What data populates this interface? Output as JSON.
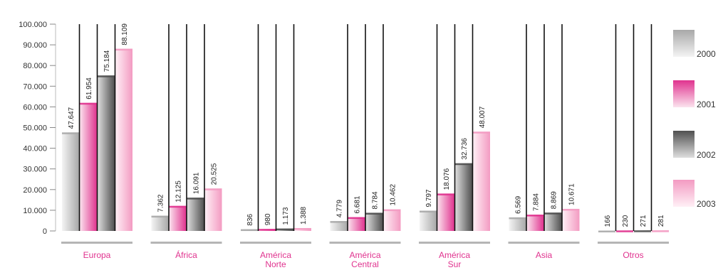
{
  "chart_data": {
    "type": "bar",
    "title": "",
    "xlabel": "",
    "ylabel": "",
    "ylim": [
      0,
      100000
    ],
    "yticks": [
      "0",
      "10.000",
      "20.000",
      "30.000",
      "40.000",
      "50.000",
      "60.000",
      "70.000",
      "80.000",
      "90.000",
      "100.000"
    ],
    "categories": [
      [
        "Europa"
      ],
      [
        "África"
      ],
      [
        "América",
        "Norte"
      ],
      [
        "América",
        "Central"
      ],
      [
        "América",
        "Sur"
      ],
      [
        "Asia"
      ],
      [
        "Otros"
      ]
    ],
    "series": [
      {
        "name": "2000",
        "values": [
          47647,
          7362,
          836,
          4779,
          9797,
          6569,
          166
        ],
        "labels": [
          "47.647",
          "7.362",
          "836",
          "4.779",
          "9.797",
          "6.569",
          "166"
        ]
      },
      {
        "name": "2001",
        "values": [
          61954,
          12125,
          980,
          6681,
          18076,
          7884,
          230
        ],
        "labels": [
          "61.954",
          "12.125",
          "980",
          "6.681",
          "18.076",
          "7.884",
          "230"
        ]
      },
      {
        "name": "2002",
        "values": [
          75184,
          16091,
          1173,
          8784,
          32736,
          8869,
          271
        ],
        "labels": [
          "75.184",
          "16.091",
          "1.173",
          "8.784",
          "32.736",
          "8.869",
          "271"
        ]
      },
      {
        "name": "2003",
        "values": [
          88109,
          20525,
          1388,
          10462,
          48007,
          10671,
          281
        ],
        "labels": [
          "88.109",
          "20.525",
          "1.388",
          "10.462",
          "48.007",
          "10.671",
          "281"
        ]
      }
    ],
    "grid": false,
    "legend": "right"
  },
  "colors": {
    "2000": [
      "#a8a8a8",
      "#f4f4f4"
    ],
    "2001": [
      "#e0338f",
      "#fbe3ee"
    ],
    "2002": [
      "#505050",
      "#dedede"
    ],
    "2003": [
      "#f39bc2",
      "#fff0f6"
    ],
    "category_text": "#e0338f",
    "divider": "#b5b5b5"
  }
}
